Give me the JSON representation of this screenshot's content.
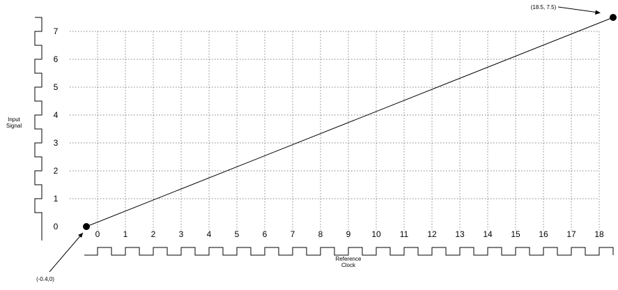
{
  "y_axis": {
    "label_lines": [
      "Input",
      "Signal"
    ],
    "ticks": [
      "0",
      "1",
      "2",
      "3",
      "4",
      "5",
      "6",
      "7"
    ]
  },
  "x_axis": {
    "label_lines": [
      "Reference",
      "Clock"
    ],
    "ticks": [
      "0",
      "1",
      "2",
      "3",
      "4",
      "5",
      "6",
      "7",
      "8",
      "9",
      "10",
      "11",
      "12",
      "13",
      "14",
      "15",
      "16",
      "17",
      "18"
    ]
  },
  "line": {
    "start": {
      "x": -0.4,
      "y": 0,
      "label": "(-0.4,0)"
    },
    "end": {
      "x": 18.5,
      "y": 7.5,
      "label": "(18.5, 7.5)"
    }
  },
  "grid": {
    "visible": true,
    "style": "dotted"
  },
  "colors": {
    "ink": "#000000",
    "grid": "#555555",
    "background": "#ffffff"
  }
}
